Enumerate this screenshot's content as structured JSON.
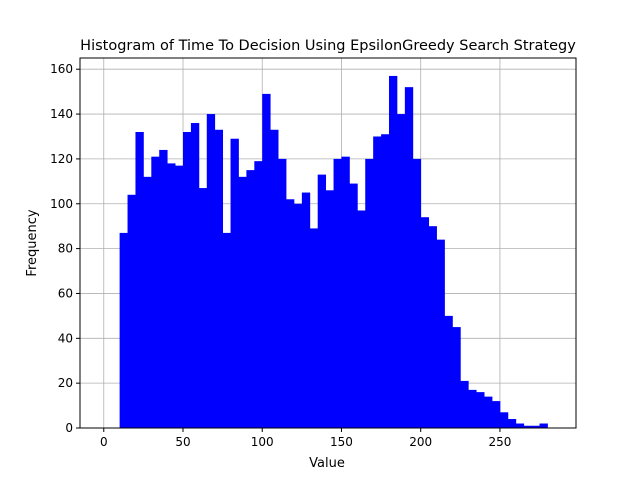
{
  "chart_data": {
    "type": "bar",
    "title": "Histogram of Time To Decision Using EpsilonGreedy Search Strategy",
    "xlabel": "Value",
    "ylabel": "Frequency",
    "xlim": [
      -15,
      298
    ],
    "ylim": [
      0,
      165
    ],
    "xticks": [
      0,
      50,
      100,
      150,
      200,
      250
    ],
    "yticks": [
      0,
      20,
      40,
      60,
      80,
      100,
      120,
      140,
      160
    ],
    "grid": true,
    "bar_color": "#0000ff",
    "bin_start": 10,
    "bin_width": 5,
    "values": [
      87,
      104,
      132,
      112,
      121,
      124,
      118,
      117,
      132,
      136,
      107,
      140,
      133,
      87,
      129,
      112,
      115,
      119,
      149,
      133,
      120,
      102,
      100,
      105,
      89,
      113,
      106,
      120,
      121,
      109,
      97,
      120,
      130,
      131,
      157,
      140,
      152,
      120,
      94,
      90,
      84,
      50,
      45,
      21,
      17,
      16,
      14,
      12,
      7,
      4,
      2,
      1,
      1,
      2
    ]
  }
}
